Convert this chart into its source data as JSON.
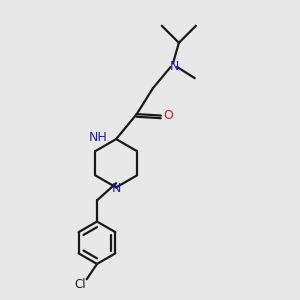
{
  "bg_color": "#e8e8e8",
  "bond_color": "#1a1a1a",
  "N_color": "#1c1ccc",
  "O_color": "#cc1c1c",
  "lw": 1.6,
  "fig_size": [
    3.0,
    3.0
  ],
  "dpi": 100,
  "xlim": [
    0,
    10
  ],
  "ylim": [
    0,
    10
  ]
}
